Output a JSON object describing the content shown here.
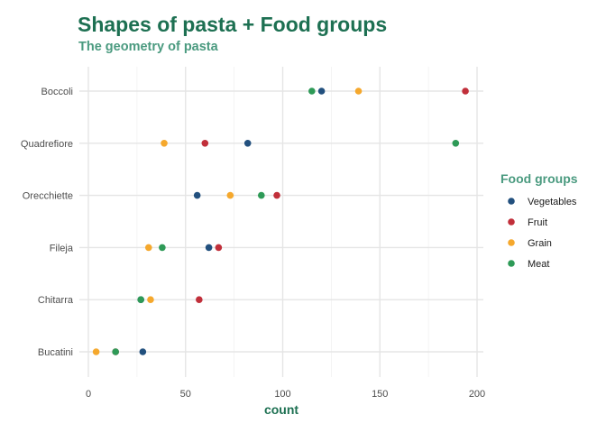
{
  "colors": {
    "title": "#1d7052",
    "subtitle": "#4a9a7f",
    "axis_label": "#1d7052",
    "legend_title": "#4a9a7f",
    "grid": "#e5e5e5"
  },
  "chart_data": {
    "type": "scatter",
    "title": "Shapes of pasta + Food groups",
    "subtitle": "The geometry of pasta",
    "xlabel": "count",
    "ylabel": "",
    "xlim": [
      0,
      200
    ],
    "x_ticks": [
      0,
      50,
      100,
      150,
      200
    ],
    "categories": [
      "Bucatini",
      "Chitarra",
      "Fileja",
      "Orecchiette",
      "Quadrefiore",
      "Boccoli"
    ],
    "legend_title": "Food groups",
    "legend_position": "right",
    "grid": true,
    "series": [
      {
        "name": "Vegetables",
        "color": "#22507e",
        "values": [
          28,
          27,
          62,
          56,
          82,
          120
        ]
      },
      {
        "name": "Fruit",
        "color": "#c12f3a",
        "values": [
          14,
          57,
          67,
          97,
          60,
          194
        ]
      },
      {
        "name": "Grain",
        "color": "#f5a82d",
        "values": [
          4,
          32,
          31,
          73,
          39,
          139
        ]
      },
      {
        "name": "Meat",
        "color": "#2e9a57",
        "values": [
          14,
          27,
          38,
          89,
          189,
          115
        ]
      }
    ]
  }
}
